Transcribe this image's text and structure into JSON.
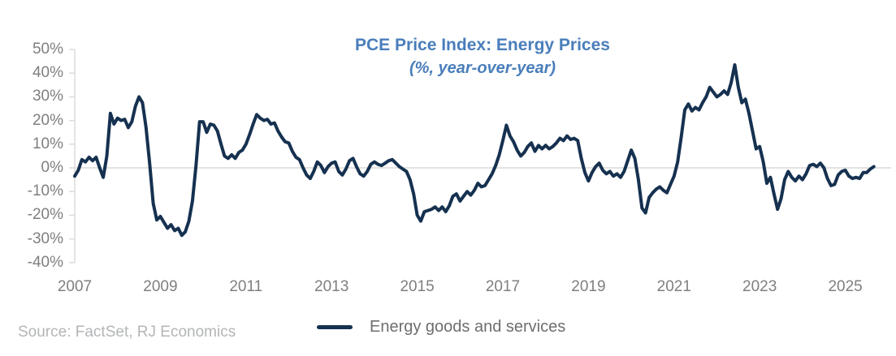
{
  "header": {
    "title": "PCE Price Index: Energy Prices",
    "subtitle": "(%, year-over-year)"
  },
  "legend": {
    "label": "Energy goods and services"
  },
  "footer": {
    "source": "Source: FactSet, RJ Economics"
  },
  "colors": {
    "line": "#163150",
    "title": "#4a7ebb",
    "axis_labels": "#7f7f7f",
    "legend_label": "#6e6e6e",
    "source_text": "#b3b5b7",
    "gridline": "#d9d9d9",
    "background": "#ffffff"
  },
  "chart_data": {
    "type": "line",
    "title": "PCE Price Index: Energy Prices",
    "subtitle": "(%, year-over-year)",
    "ylabel": "",
    "xlabel": "",
    "ylim": [
      -40,
      50
    ],
    "y_ticks": [
      50,
      40,
      30,
      20,
      10,
      0,
      -10,
      -20,
      -30,
      -40
    ],
    "y_tick_labels": [
      "50%",
      "40%",
      "30%",
      "20%",
      "10%",
      "0%",
      "-10%",
      "-20%",
      "-30%",
      "-40%"
    ],
    "x_tick_years": [
      2007,
      2009,
      2011,
      2013,
      2015,
      2017,
      2019,
      2021,
      2023,
      2025
    ],
    "x_tick_labels": [
      "2007",
      "2009",
      "2011",
      "2013",
      "2015",
      "2017",
      "2019",
      "2021",
      "2023",
      "2025"
    ],
    "x_start": "2007-01",
    "x_end": "2025-09",
    "frequency": "monthly",
    "grid": "zero-line-only",
    "legend_position": "bottom",
    "series": [
      {
        "name": "Energy goods and services",
        "unit": "percent",
        "values": [
          -3.5,
          -1.0,
          3.5,
          2.5,
          4.5,
          3.0,
          4.5,
          0.0,
          -4.0,
          5.0,
          23.0,
          18.5,
          21.0,
          20.0,
          20.5,
          17.0,
          19.5,
          26.0,
          30.0,
          27.5,
          17.0,
          2.0,
          -15.0,
          -22.0,
          -20.5,
          -23.0,
          -25.5,
          -24.0,
          -26.5,
          -25.5,
          -28.5,
          -27.0,
          -22.5,
          -14.0,
          1.0,
          19.5,
          19.5,
          15.0,
          18.5,
          18.0,
          15.5,
          10.0,
          5.0,
          4.0,
          5.5,
          4.0,
          6.5,
          7.5,
          10.0,
          14.0,
          18.5,
          22.5,
          21.0,
          20.0,
          20.5,
          18.5,
          19.0,
          15.5,
          13.0,
          11.0,
          10.5,
          7.0,
          4.5,
          3.5,
          0.0,
          -3.0,
          -4.5,
          -1.5,
          2.5,
          1.0,
          -2.0,
          0.5,
          2.0,
          2.5,
          -1.5,
          -3.0,
          -0.5,
          3.0,
          4.0,
          0.5,
          -2.5,
          -3.5,
          -1.5,
          1.5,
          2.5,
          1.5,
          1.0,
          2.0,
          3.0,
          3.5,
          2.0,
          0.5,
          -0.5,
          -1.5,
          -5.0,
          -11.0,
          -20.0,
          -22.5,
          -18.5,
          -18.0,
          -17.5,
          -16.5,
          -18.0,
          -16.5,
          -18.5,
          -16.0,
          -12.0,
          -11.0,
          -14.0,
          -12.0,
          -10.0,
          -11.5,
          -9.5,
          -6.5,
          -8.0,
          -7.5,
          -5.0,
          -2.5,
          1.0,
          5.5,
          11.5,
          18.0,
          13.5,
          11.0,
          7.5,
          5.0,
          6.5,
          9.0,
          10.5,
          7.0,
          9.5,
          8.0,
          9.5,
          8.0,
          9.0,
          10.5,
          12.5,
          11.5,
          13.5,
          12.0,
          12.5,
          11.5,
          4.0,
          -2.0,
          -5.5,
          -2.0,
          0.5,
          2.0,
          -1.0,
          -2.5,
          -1.5,
          -3.5,
          -2.5,
          -4.0,
          -1.5,
          3.0,
          7.5,
          4.0,
          -5.0,
          -17.0,
          -19.0,
          -12.5,
          -10.5,
          -9.0,
          -8.0,
          -9.5,
          -10.5,
          -7.0,
          -3.5,
          2.5,
          13.0,
          24.5,
          27.0,
          24.0,
          25.5,
          24.5,
          27.5,
          30.0,
          34.0,
          32.0,
          30.0,
          31.0,
          32.5,
          31.0,
          36.0,
          43.5,
          34.0,
          27.5,
          29.0,
          23.0,
          15.5,
          8.0,
          9.0,
          2.5,
          -6.5,
          -4.0,
          -11.0,
          -17.5,
          -13.0,
          -5.0,
          -1.5,
          -4.0,
          -5.5,
          -3.5,
          -5.0,
          -2.5,
          1.0,
          1.5,
          0.5,
          2.0,
          0.0,
          -4.5,
          -7.5,
          -7.0,
          -3.0,
          -1.5,
          -1.0,
          -3.5,
          -4.5,
          -4.0,
          -4.5,
          -2.0,
          -2.0,
          -0.5,
          0.5
        ]
      }
    ]
  }
}
